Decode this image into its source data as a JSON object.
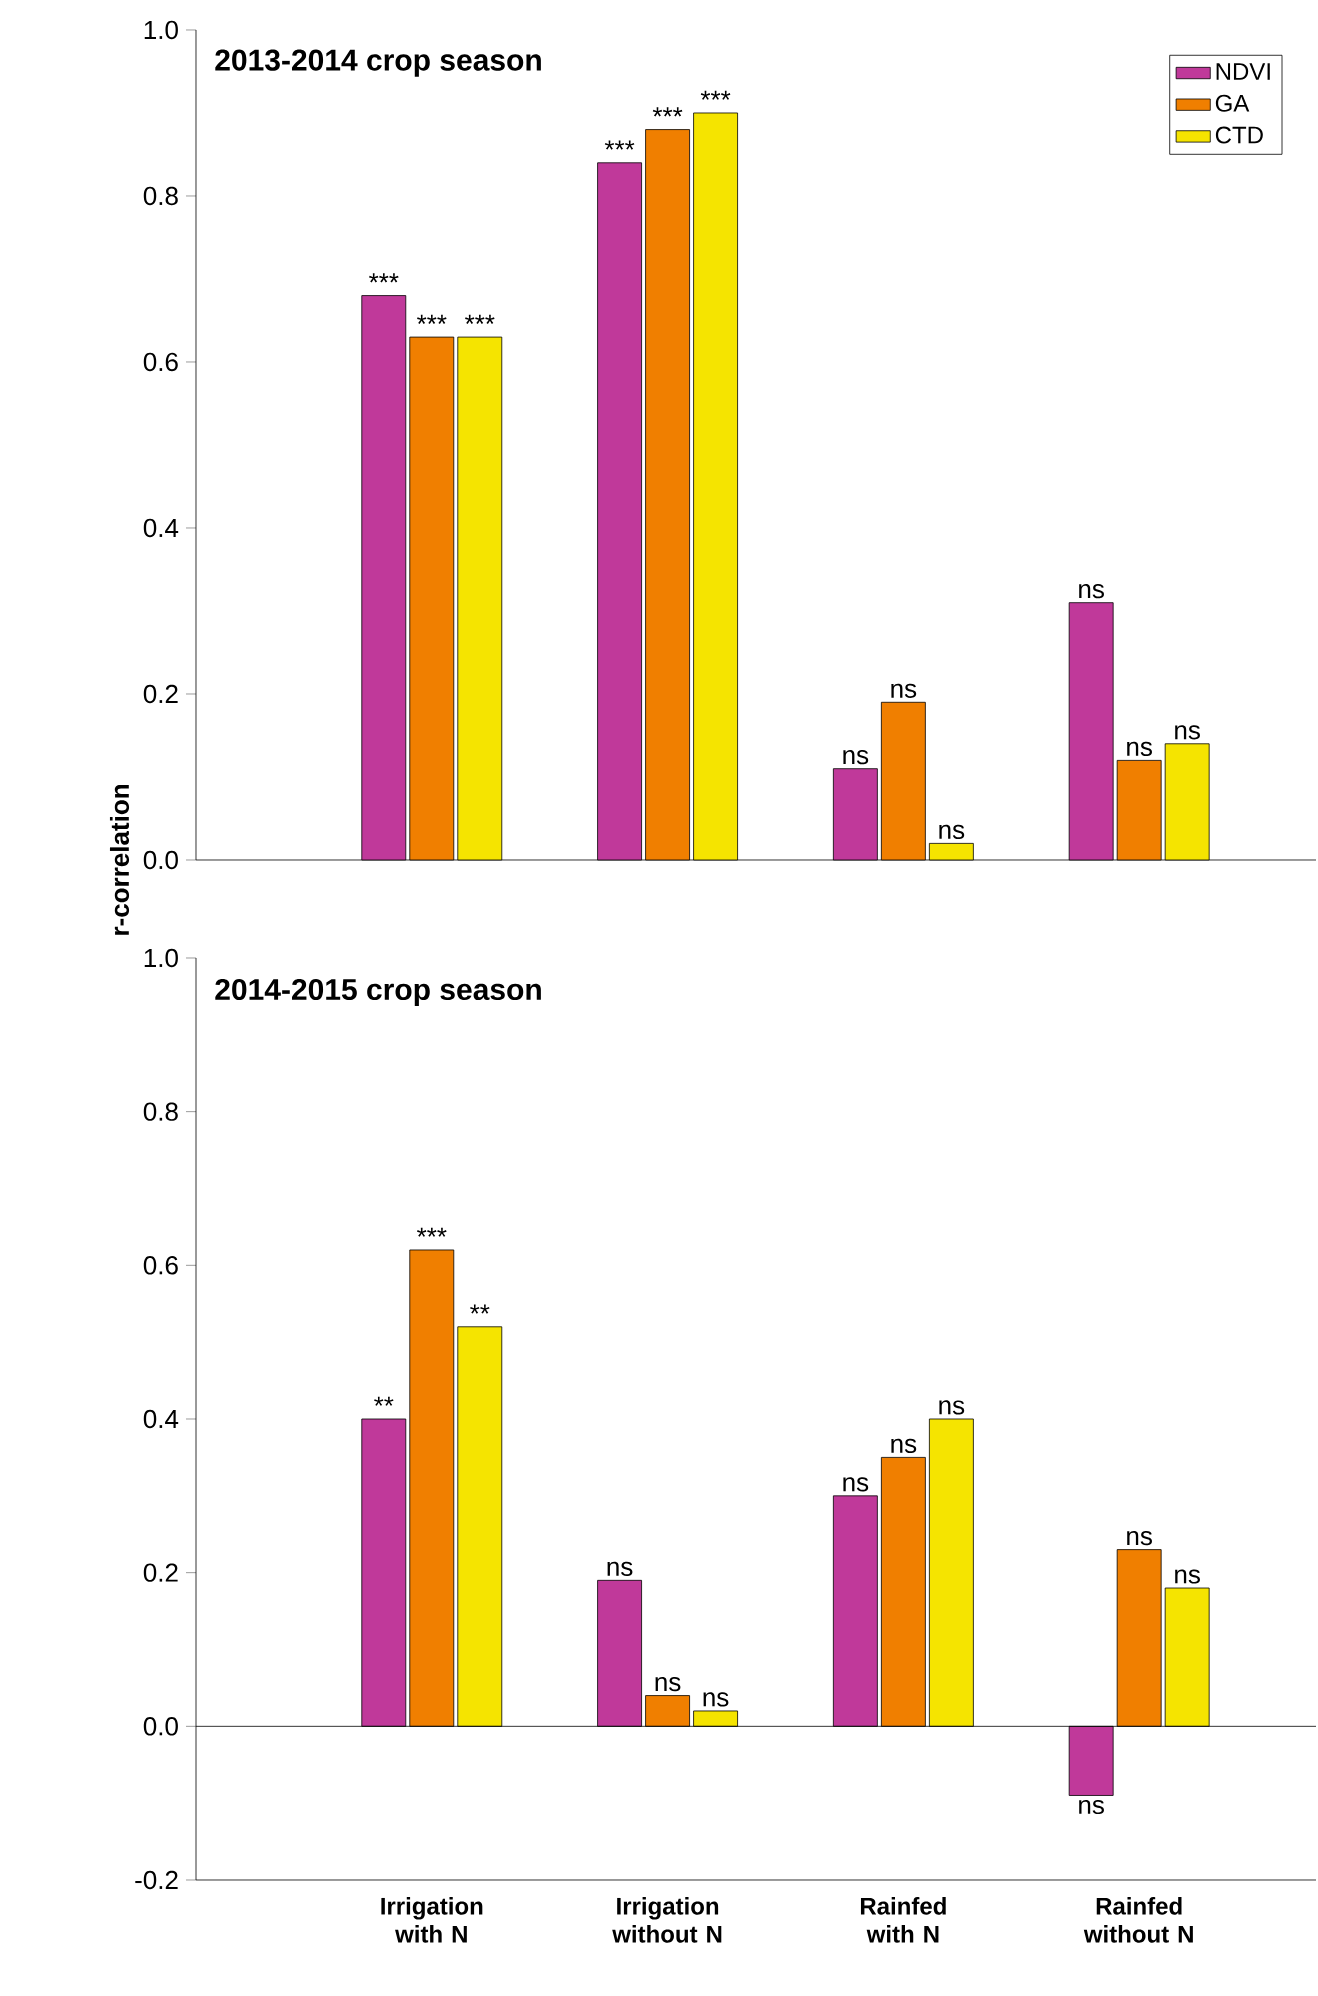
{
  "chart_data": [
    {
      "type": "bar",
      "title": "2013-2014 crop season",
      "ylabel": "r-correlation",
      "categories": [
        null,
        null,
        null,
        null
      ],
      "series": [
        {
          "name": "NDVI",
          "color": "#c0399a",
          "values": [
            0.68,
            0.84,
            0.11,
            0.31
          ],
          "value_labels": [
            "***",
            "***",
            "ns",
            "ns"
          ]
        },
        {
          "name": "GA",
          "color": "#f07f00",
          "values": [
            0.63,
            0.88,
            0.19,
            0.12
          ],
          "value_labels": [
            "***",
            "***",
            "ns",
            "ns"
          ]
        },
        {
          "name": "CTD",
          "color": "#f5e400",
          "values": [
            0.63,
            0.9,
            0.02,
            0.14
          ],
          "value_labels": [
            "***",
            "***",
            "ns",
            "ns"
          ]
        }
      ],
      "ylim": [
        0,
        1.0
      ],
      "yticks": [
        {
          "value": 0,
          "label": "0.0"
        },
        {
          "value": 0.2,
          "label": "0.2"
        },
        {
          "value": 0.4,
          "label": "0.4"
        },
        {
          "value": 0.6,
          "label": "0.6"
        },
        {
          "value": 0.8,
          "label": "0.8"
        },
        {
          "value": 1.0,
          "label": "1.0"
        }
      ],
      "tick_labels": "y",
      "legend": "top right"
    },
    {
      "type": "bar",
      "title": "2014-2015 crop season",
      "categories": [
        "Irrigation with N",
        "Irrigation without N",
        "Rainfed with N",
        "Rainfed without N"
      ],
      "series": [
        {
          "color": "#c0399a",
          "values": [
            0.4,
            0.19,
            0.3,
            -0.09
          ],
          "value_labels": [
            "**",
            "ns",
            "ns",
            "ns"
          ]
        },
        {
          "color": "#f07f00",
          "values": [
            0.62,
            0.04,
            0.35,
            0.23
          ],
          "value_labels": [
            "***",
            "ns",
            "ns",
            "ns"
          ]
        },
        {
          "color": "#f5e400",
          "values": [
            0.52,
            0.02,
            0.4,
            0.18
          ],
          "value_labels": [
            "**",
            "ns",
            "ns",
            "ns"
          ]
        }
      ],
      "ylim": [
        -0.2,
        1.0
      ],
      "yticks": [
        {
          "value": -0.2,
          "label": "-0.2"
        },
        {
          "value": 0,
          "label": "0.0"
        },
        {
          "value": 0.2,
          "label": "0.2"
        },
        {
          "value": 0.4,
          "label": "0.4"
        },
        {
          "value": 0.6,
          "label": "0.6"
        },
        {
          "value": 0.8,
          "label": "0.8"
        },
        {
          "value": 1.0,
          "label": "1.0"
        }
      ],
      "ref_lines": [
        {
          "axis": "y",
          "value": 0
        }
      ],
      "legend": false
    }
  ]
}
